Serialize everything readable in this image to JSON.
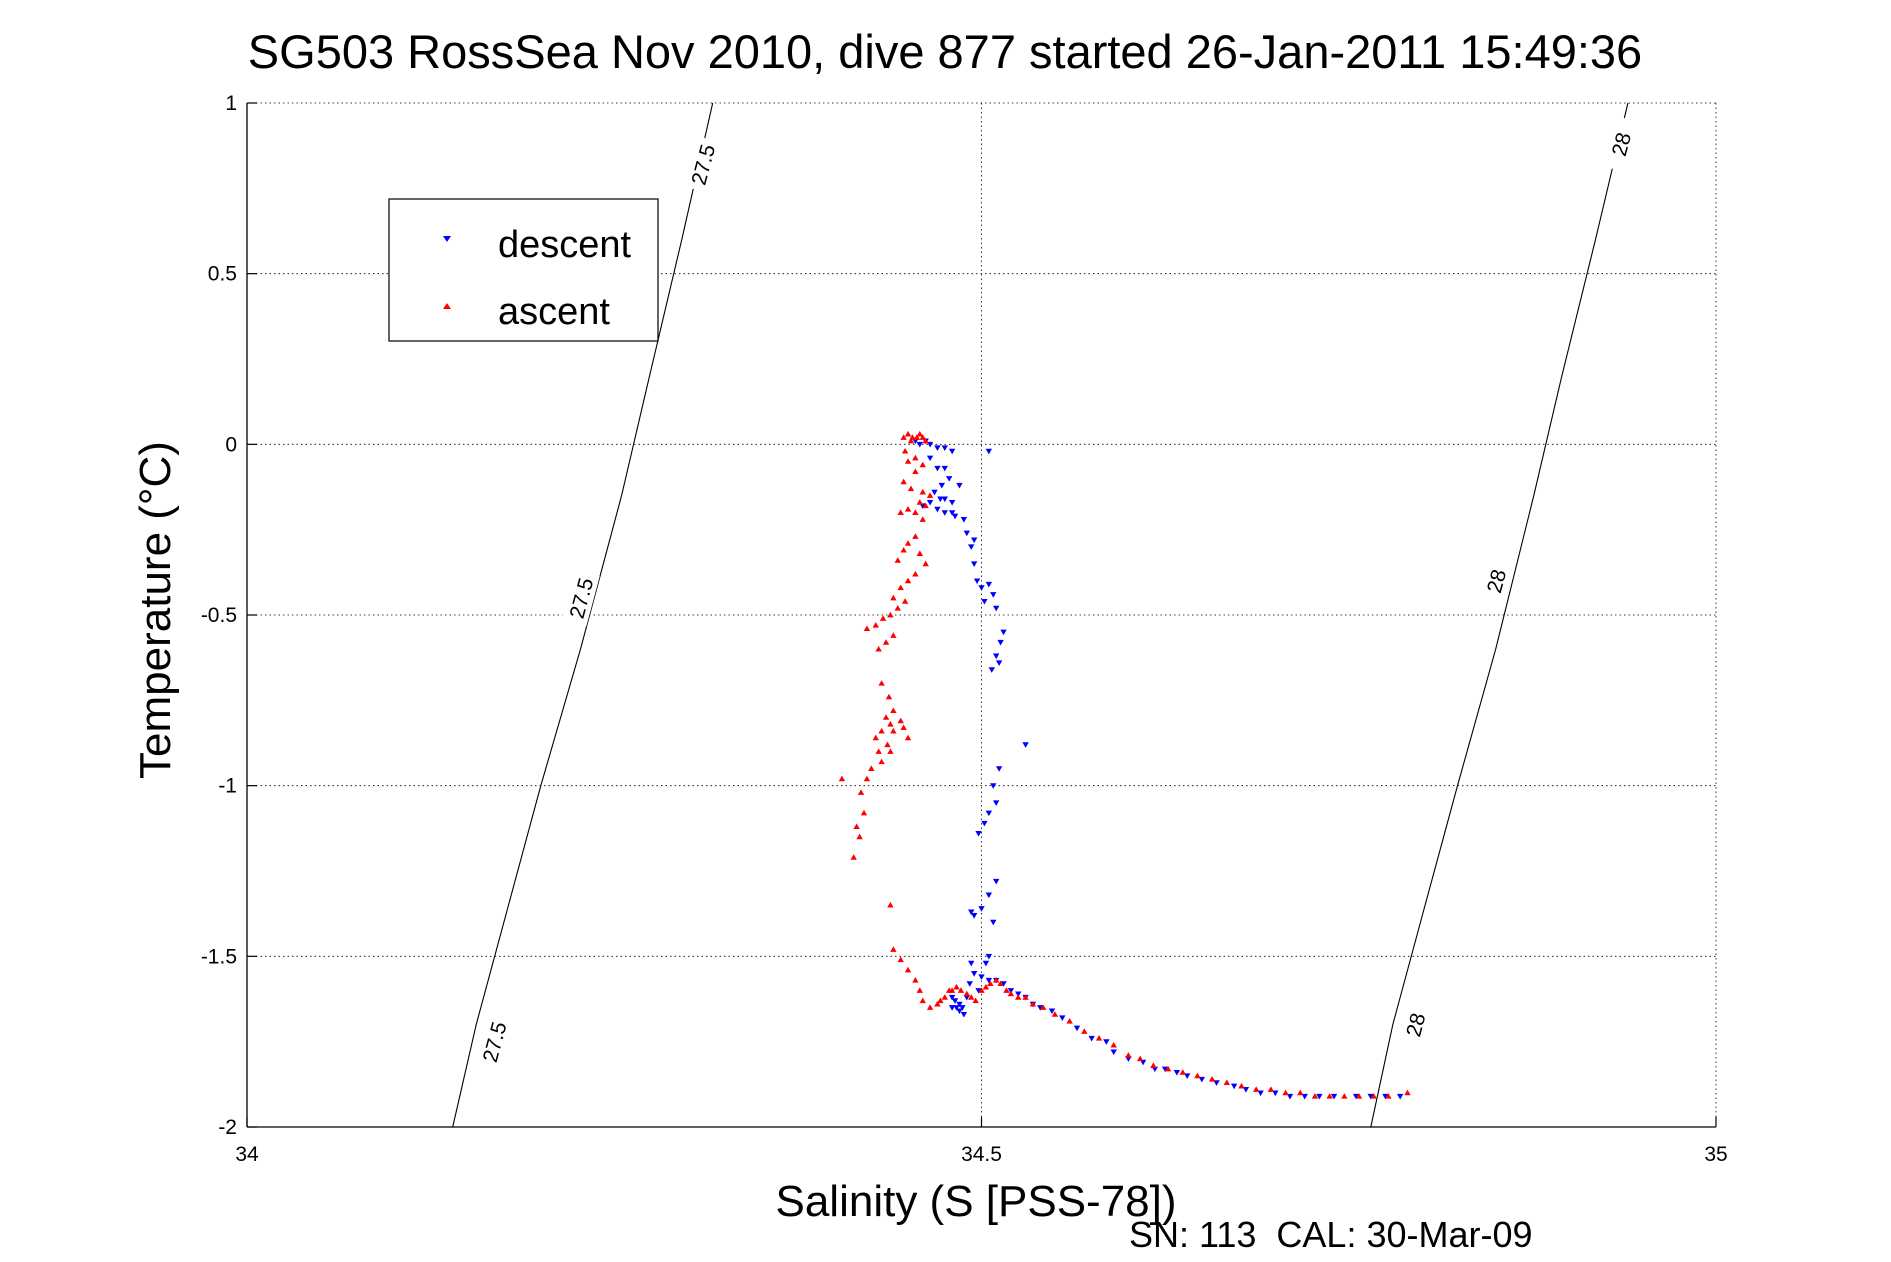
{
  "chart_data": {
    "type": "scatter",
    "title": "SG503 RossSea Nov 2010, dive 877 started 26-Jan-2011 15:49:36",
    "xlabel": "Salinity (S [PSS-78])",
    "ylabel": "Temperature (°C)",
    "xlim": [
      34,
      35
    ],
    "ylim": [
      -2,
      1
    ],
    "x_ticks": [
      "34",
      "34.5",
      "35"
    ],
    "y_ticks": [
      "1",
      "0.5",
      "0",
      "-0.5",
      "-1",
      "-1.5",
      "-2"
    ],
    "grid": true,
    "legend_position": "top-left",
    "footer": "SN: 113  CAL: 30-Mar-09",
    "density_contours": [
      {
        "label": "27.5",
        "points": [
          [
            34.317,
            1.0
          ],
          [
            34.296,
            0.6
          ],
          [
            34.274,
            0.2
          ],
          [
            34.255,
            -0.15
          ],
          [
            34.227,
            -0.6
          ],
          [
            34.2,
            -1.0
          ],
          [
            34.178,
            -1.35
          ],
          [
            34.156,
            -1.7
          ],
          [
            34.14,
            -2.0
          ]
        ],
        "label_positions": [
          [
            34.31,
            0.82
          ],
          [
            34.227,
            -0.45
          ],
          [
            34.168,
            -1.75
          ]
        ]
      },
      {
        "label": "28",
        "points": [
          [
            34.94,
            1.0
          ],
          [
            34.918,
            0.6
          ],
          [
            34.895,
            0.2
          ],
          [
            34.876,
            -0.15
          ],
          [
            34.85,
            -0.6
          ],
          [
            34.824,
            -1.0
          ],
          [
            34.802,
            -1.35
          ],
          [
            34.78,
            -1.7
          ],
          [
            34.765,
            -2.0
          ]
        ],
        "label_positions": [
          [
            34.935,
            0.88
          ],
          [
            34.85,
            -0.4
          ],
          [
            34.795,
            -1.7
          ]
        ]
      }
    ],
    "series": [
      {
        "name": "descent",
        "color": "#0000ff",
        "marker": "triangle-down",
        "points": [
          [
            34.455,
            0.01
          ],
          [
            34.458,
            0.0
          ],
          [
            34.462,
            0.01
          ],
          [
            34.465,
            0.0
          ],
          [
            34.47,
            -0.01
          ],
          [
            34.475,
            -0.01
          ],
          [
            34.48,
            -0.02
          ],
          [
            34.505,
            -0.02
          ],
          [
            34.465,
            -0.04
          ],
          [
            34.47,
            -0.07
          ],
          [
            34.475,
            -0.07
          ],
          [
            34.478,
            -0.1
          ],
          [
            34.473,
            -0.12
          ],
          [
            34.468,
            -0.14
          ],
          [
            34.472,
            -0.16
          ],
          [
            34.475,
            -0.16
          ],
          [
            34.48,
            -0.17
          ],
          [
            34.485,
            -0.12
          ],
          [
            34.46,
            -0.18
          ],
          [
            34.465,
            -0.17
          ],
          [
            34.47,
            -0.19
          ],
          [
            34.475,
            -0.2
          ],
          [
            34.48,
            -0.2
          ],
          [
            34.482,
            -0.21
          ],
          [
            34.488,
            -0.22
          ],
          [
            34.49,
            -0.26
          ],
          [
            34.495,
            -0.28
          ],
          [
            34.493,
            -0.3
          ],
          [
            34.495,
            -0.35
          ],
          [
            34.497,
            -0.4
          ],
          [
            34.5,
            -0.42
          ],
          [
            34.505,
            -0.41
          ],
          [
            34.502,
            -0.46
          ],
          [
            34.508,
            -0.44
          ],
          [
            34.51,
            -0.48
          ],
          [
            34.515,
            -0.55
          ],
          [
            34.513,
            -0.58
          ],
          [
            34.51,
            -0.62
          ],
          [
            34.507,
            -0.66
          ],
          [
            34.512,
            -0.64
          ],
          [
            34.53,
            -0.88
          ],
          [
            34.512,
            -0.95
          ],
          [
            34.508,
            -1.0
          ],
          [
            34.51,
            -1.05
          ],
          [
            34.505,
            -1.08
          ],
          [
            34.502,
            -1.11
          ],
          [
            34.498,
            -1.14
          ],
          [
            34.51,
            -1.28
          ],
          [
            34.505,
            -1.32
          ],
          [
            34.5,
            -1.36
          ],
          [
            34.493,
            -1.37
          ],
          [
            34.495,
            -1.38
          ],
          [
            34.508,
            -1.4
          ],
          [
            34.495,
            -1.55
          ],
          [
            34.492,
            -1.58
          ],
          [
            34.493,
            -1.52
          ],
          [
            34.505,
            -1.5
          ],
          [
            34.503,
            -1.52
          ],
          [
            34.5,
            -1.56
          ],
          [
            34.498,
            -1.6
          ],
          [
            34.49,
            -1.62
          ],
          [
            34.485,
            -1.64
          ],
          [
            34.48,
            -1.65
          ],
          [
            34.485,
            -1.66
          ],
          [
            34.482,
            -1.63
          ],
          [
            34.488,
            -1.67
          ],
          [
            34.483,
            -1.65
          ],
          [
            34.487,
            -1.65
          ],
          [
            34.48,
            -1.62
          ],
          [
            34.505,
            -1.57
          ],
          [
            34.51,
            -1.57
          ],
          [
            34.515,
            -1.58
          ],
          [
            34.52,
            -1.6
          ],
          [
            34.525,
            -1.61
          ],
          [
            34.53,
            -1.62
          ],
          [
            34.535,
            -1.64
          ],
          [
            34.54,
            -1.65
          ],
          [
            34.548,
            -1.66
          ],
          [
            34.555,
            -1.68
          ],
          [
            34.565,
            -1.71
          ],
          [
            34.575,
            -1.74
          ],
          [
            34.585,
            -1.75
          ],
          [
            34.59,
            -1.78
          ],
          [
            34.6,
            -1.8
          ],
          [
            34.61,
            -1.81
          ],
          [
            34.618,
            -1.83
          ],
          [
            34.625,
            -1.83
          ],
          [
            34.633,
            -1.84
          ],
          [
            34.64,
            -1.85
          ],
          [
            34.65,
            -1.86
          ],
          [
            34.66,
            -1.87
          ],
          [
            34.672,
            -1.88
          ],
          [
            34.68,
            -1.89
          ],
          [
            34.69,
            -1.9
          ],
          [
            34.7,
            -1.9
          ],
          [
            34.71,
            -1.91
          ],
          [
            34.72,
            -1.91
          ],
          [
            34.73,
            -1.91
          ],
          [
            34.74,
            -1.91
          ],
          [
            34.755,
            -1.91
          ],
          [
            34.765,
            -1.91
          ],
          [
            34.775,
            -1.91
          ],
          [
            34.785,
            -1.91
          ]
        ]
      },
      {
        "name": "ascent",
        "color": "#ff0000",
        "marker": "triangle-up",
        "points": [
          [
            34.447,
            0.02
          ],
          [
            34.45,
            0.03
          ],
          [
            34.453,
            0.02
          ],
          [
            34.456,
            0.02
          ],
          [
            34.458,
            0.03
          ],
          [
            34.46,
            0.02
          ],
          [
            34.462,
            0.01
          ],
          [
            34.452,
            0.01
          ],
          [
            34.448,
            -0.02
          ],
          [
            34.455,
            -0.04
          ],
          [
            34.45,
            -0.05
          ],
          [
            34.46,
            -0.06
          ],
          [
            34.455,
            -0.08
          ],
          [
            34.447,
            -0.11
          ],
          [
            34.452,
            -0.13
          ],
          [
            34.46,
            -0.14
          ],
          [
            34.465,
            -0.15
          ],
          [
            34.458,
            -0.17
          ],
          [
            34.462,
            -0.18
          ],
          [
            34.45,
            -0.19
          ],
          [
            34.455,
            -0.2
          ],
          [
            34.445,
            -0.2
          ],
          [
            34.46,
            -0.22
          ],
          [
            34.455,
            -0.27
          ],
          [
            34.45,
            -0.29
          ],
          [
            34.447,
            -0.31
          ],
          [
            34.443,
            -0.34
          ],
          [
            34.458,
            -0.32
          ],
          [
            34.462,
            -0.35
          ],
          [
            34.455,
            -0.38
          ],
          [
            34.45,
            -0.4
          ],
          [
            34.445,
            -0.42
          ],
          [
            34.44,
            -0.45
          ],
          [
            34.448,
            -0.46
          ],
          [
            34.443,
            -0.48
          ],
          [
            34.438,
            -0.5
          ],
          [
            34.433,
            -0.51
          ],
          [
            34.428,
            -0.53
          ],
          [
            34.422,
            -0.54
          ],
          [
            34.44,
            -0.56
          ],
          [
            34.435,
            -0.58
          ],
          [
            34.43,
            -0.6
          ],
          [
            34.432,
            -0.7
          ],
          [
            34.437,
            -0.74
          ],
          [
            34.44,
            -0.78
          ],
          [
            34.435,
            -0.8
          ],
          [
            34.438,
            -0.82
          ],
          [
            34.44,
            -0.84
          ],
          [
            34.445,
            -0.81
          ],
          [
            34.447,
            -0.83
          ],
          [
            34.45,
            -0.86
          ],
          [
            34.432,
            -0.84
          ],
          [
            34.428,
            -0.86
          ],
          [
            34.43,
            -0.9
          ],
          [
            34.432,
            -0.93
          ],
          [
            34.436,
            -0.88
          ],
          [
            34.438,
            -0.9
          ],
          [
            34.425,
            -0.95
          ],
          [
            34.422,
            -0.98
          ],
          [
            34.418,
            -1.02
          ],
          [
            34.405,
            -0.98
          ],
          [
            34.42,
            -1.08
          ],
          [
            34.415,
            -1.12
          ],
          [
            34.417,
            -1.15
          ],
          [
            34.413,
            -1.21
          ],
          [
            34.438,
            -1.35
          ],
          [
            34.44,
            -1.48
          ],
          [
            34.445,
            -1.51
          ],
          [
            34.45,
            -1.54
          ],
          [
            34.455,
            -1.57
          ],
          [
            34.458,
            -1.6
          ],
          [
            34.46,
            -1.63
          ],
          [
            34.465,
            -1.65
          ],
          [
            34.47,
            -1.64
          ],
          [
            34.472,
            -1.63
          ],
          [
            34.475,
            -1.62
          ],
          [
            34.478,
            -1.6
          ],
          [
            34.48,
            -1.6
          ],
          [
            34.483,
            -1.59
          ],
          [
            34.486,
            -1.6
          ],
          [
            34.49,
            -1.61
          ],
          [
            34.493,
            -1.62
          ],
          [
            34.496,
            -1.63
          ],
          [
            34.5,
            -1.6
          ],
          [
            34.503,
            -1.59
          ],
          [
            34.506,
            -1.58
          ],
          [
            34.51,
            -1.57
          ],
          [
            34.513,
            -1.58
          ],
          [
            34.517,
            -1.6
          ],
          [
            34.52,
            -1.61
          ],
          [
            34.525,
            -1.62
          ],
          [
            34.53,
            -1.62
          ],
          [
            34.535,
            -1.64
          ],
          [
            34.542,
            -1.65
          ],
          [
            34.55,
            -1.67
          ],
          [
            34.56,
            -1.69
          ],
          [
            34.57,
            -1.72
          ],
          [
            34.58,
            -1.74
          ],
          [
            34.59,
            -1.76
          ],
          [
            34.6,
            -1.79
          ],
          [
            34.608,
            -1.8
          ],
          [
            34.617,
            -1.82
          ],
          [
            34.627,
            -1.83
          ],
          [
            34.637,
            -1.84
          ],
          [
            34.647,
            -1.85
          ],
          [
            34.657,
            -1.86
          ],
          [
            34.667,
            -1.87
          ],
          [
            34.677,
            -1.88
          ],
          [
            34.687,
            -1.89
          ],
          [
            34.697,
            -1.89
          ],
          [
            34.707,
            -1.9
          ],
          [
            34.717,
            -1.9
          ],
          [
            34.727,
            -1.91
          ],
          [
            34.737,
            -1.91
          ],
          [
            34.747,
            -1.91
          ],
          [
            34.757,
            -1.91
          ],
          [
            34.767,
            -1.91
          ],
          [
            34.777,
            -1.91
          ],
          [
            34.79,
            -1.9
          ]
        ]
      }
    ]
  }
}
